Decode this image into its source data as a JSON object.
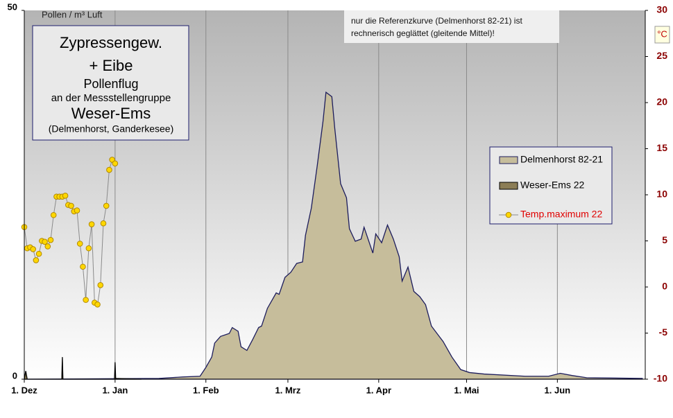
{
  "chart_data": {
    "type": "area",
    "title_lines": [
      "Zypressengew.",
      "+ Eibe",
      "Pollenflug",
      "an der Messstellengruppe",
      "Weser-Ems",
      "(Delmenhorst, Ganderkesee)"
    ],
    "y_label": "Pollen / m³ Luft",
    "y2_label": "°C",
    "note_lines": [
      "nur die Referenzkurve (Delmenhorst 82-21) ist",
      "rechnerisch geglättet (gleitende Mittel)!"
    ],
    "xlim": [
      0,
      212
    ],
    "xticks": [
      {
        "value": 0,
        "label": "1. Dez"
      },
      {
        "value": 31,
        "label": "1. Jan"
      },
      {
        "value": 62,
        "label": "1. Feb"
      },
      {
        "value": 90,
        "label": "1. Mrz"
      },
      {
        "value": 121,
        "label": "1. Apr"
      },
      {
        "value": 151,
        "label": "1. Mai"
      },
      {
        "value": 182,
        "label": "1. Jun"
      }
    ],
    "ylim": [
      0,
      50
    ],
    "yticks": [
      0,
      50
    ],
    "y2lim": [
      -10,
      30
    ],
    "y2ticks": [
      -10,
      -5,
      0,
      5,
      10,
      15,
      20,
      25,
      30
    ],
    "grid": "x",
    "legend": "right",
    "series": [
      {
        "name": "Delmenhorst 82-21",
        "type": "area",
        "color": "#c6bd9b",
        "line_color": "#1c1c5c",
        "x": [
          0,
          46,
          54,
          60,
          62,
          64,
          65,
          67,
          70,
          71,
          73,
          74,
          76,
          78,
          80,
          81,
          83,
          86,
          87,
          89,
          91,
          93,
          95,
          96,
          98,
          100,
          102,
          103,
          105,
          106,
          108,
          110,
          111,
          113,
          115,
          116,
          119,
          120,
          122,
          124,
          126,
          128,
          129,
          131,
          133,
          135,
          137,
          139,
          143,
          146,
          149,
          152,
          157,
          171,
          179,
          183,
          187,
          192,
          211
        ],
        "values": [
          0,
          0.1,
          0.3,
          0.4,
          1.6,
          3.0,
          4.9,
          5.8,
          6.2,
          7.0,
          6.5,
          4.4,
          3.9,
          5.4,
          7.0,
          7.2,
          9.6,
          11.7,
          11.5,
          13.8,
          14.5,
          15.7,
          15.9,
          19.5,
          23.2,
          28.9,
          35.0,
          38.9,
          38.3,
          34.0,
          26.5,
          24.6,
          20.4,
          18.7,
          19.0,
          20.6,
          17.1,
          19.7,
          18.5,
          20.9,
          19.0,
          16.6,
          13.3,
          15.2,
          11.9,
          11.2,
          10.1,
          7.2,
          5.1,
          3.0,
          1.3,
          0.9,
          0.7,
          0.4,
          0.4,
          0.8,
          0.5,
          0.2,
          0.1
        ]
      },
      {
        "name": "Weser-Ems 22",
        "type": "area",
        "color": "#8c7e56",
        "line_color": "#000000",
        "x": [
          0,
          0.5,
          1,
          12.8,
          13,
          13.2,
          30.8,
          31,
          31.2,
          40
        ],
        "values": [
          0,
          1.1,
          0,
          0,
          3.0,
          0,
          0,
          2.3,
          0.1,
          0
        ]
      },
      {
        "name": "Temp.maximum 22",
        "type": "line",
        "axis": "y2",
        "color": "#ffd700",
        "line_color": "#8a8a8a",
        "legend_color": "#e00000",
        "x": [
          0,
          1,
          2,
          3,
          4,
          5,
          6,
          7,
          8,
          9,
          10,
          11,
          12,
          13,
          14,
          15,
          16,
          17,
          18,
          19,
          20,
          21,
          22,
          23,
          24,
          25,
          26,
          27,
          28,
          29,
          30,
          31
        ],
        "values": [
          6.5,
          4.2,
          4.3,
          4.1,
          2.9,
          3.6,
          5.0,
          4.9,
          4.4,
          5.1,
          7.8,
          9.8,
          9.8,
          9.8,
          9.9,
          8.9,
          8.8,
          8.2,
          8.3,
          4.7,
          2.2,
          -1.4,
          4.2,
          6.8,
          -1.7,
          -1.9,
          0.2,
          6.9,
          8.8,
          12.7,
          13.8,
          13.4
        ]
      }
    ]
  }
}
